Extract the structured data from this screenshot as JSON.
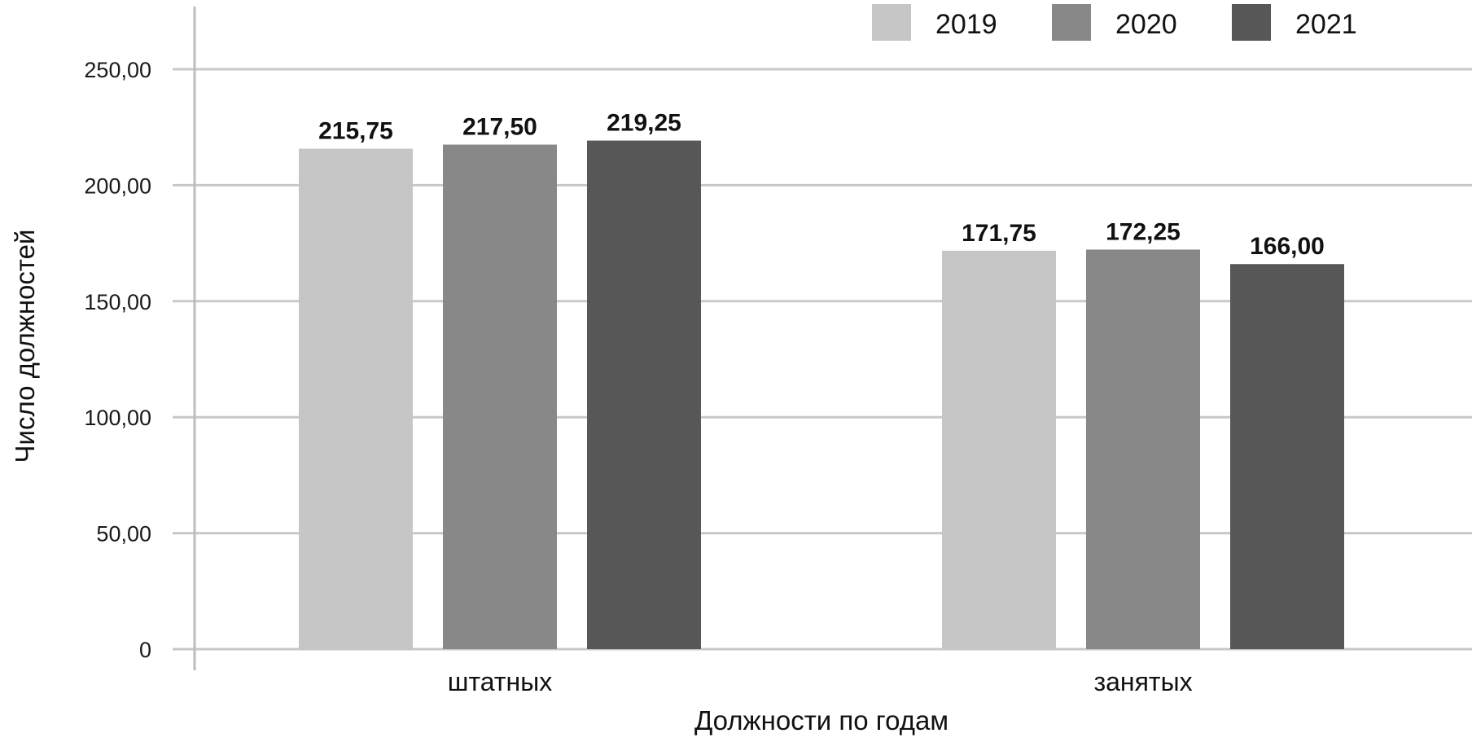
{
  "chart_data": {
    "type": "bar",
    "categories": [
      "штатных",
      "занятых"
    ],
    "series": [
      {
        "name": "2019",
        "values": [
          215.75,
          171.75
        ],
        "labels": [
          "215,75",
          "171,75"
        ],
        "color": "#c6c6c6"
      },
      {
        "name": "2020",
        "values": [
          217.5,
          172.25
        ],
        "labels": [
          "217,50",
          "172,25"
        ],
        "color": "#888888"
      },
      {
        "name": "2021",
        "values": [
          219.25,
          166.0
        ],
        "labels": [
          "219,25",
          "166,00"
        ],
        "color": "#575757"
      }
    ],
    "xlabel": "Должности по годам",
    "ylabel": "Число должностей",
    "ylim": [
      0,
      250
    ],
    "yticks": [
      0,
      50,
      100,
      150,
      200,
      250
    ],
    "ytick_labels": [
      "0",
      "50,00",
      "100,00",
      "150,00",
      "200,00",
      "250,00"
    ],
    "grid": true,
    "legend_position": "top-right",
    "gridline_color": "#c8c8c8"
  }
}
